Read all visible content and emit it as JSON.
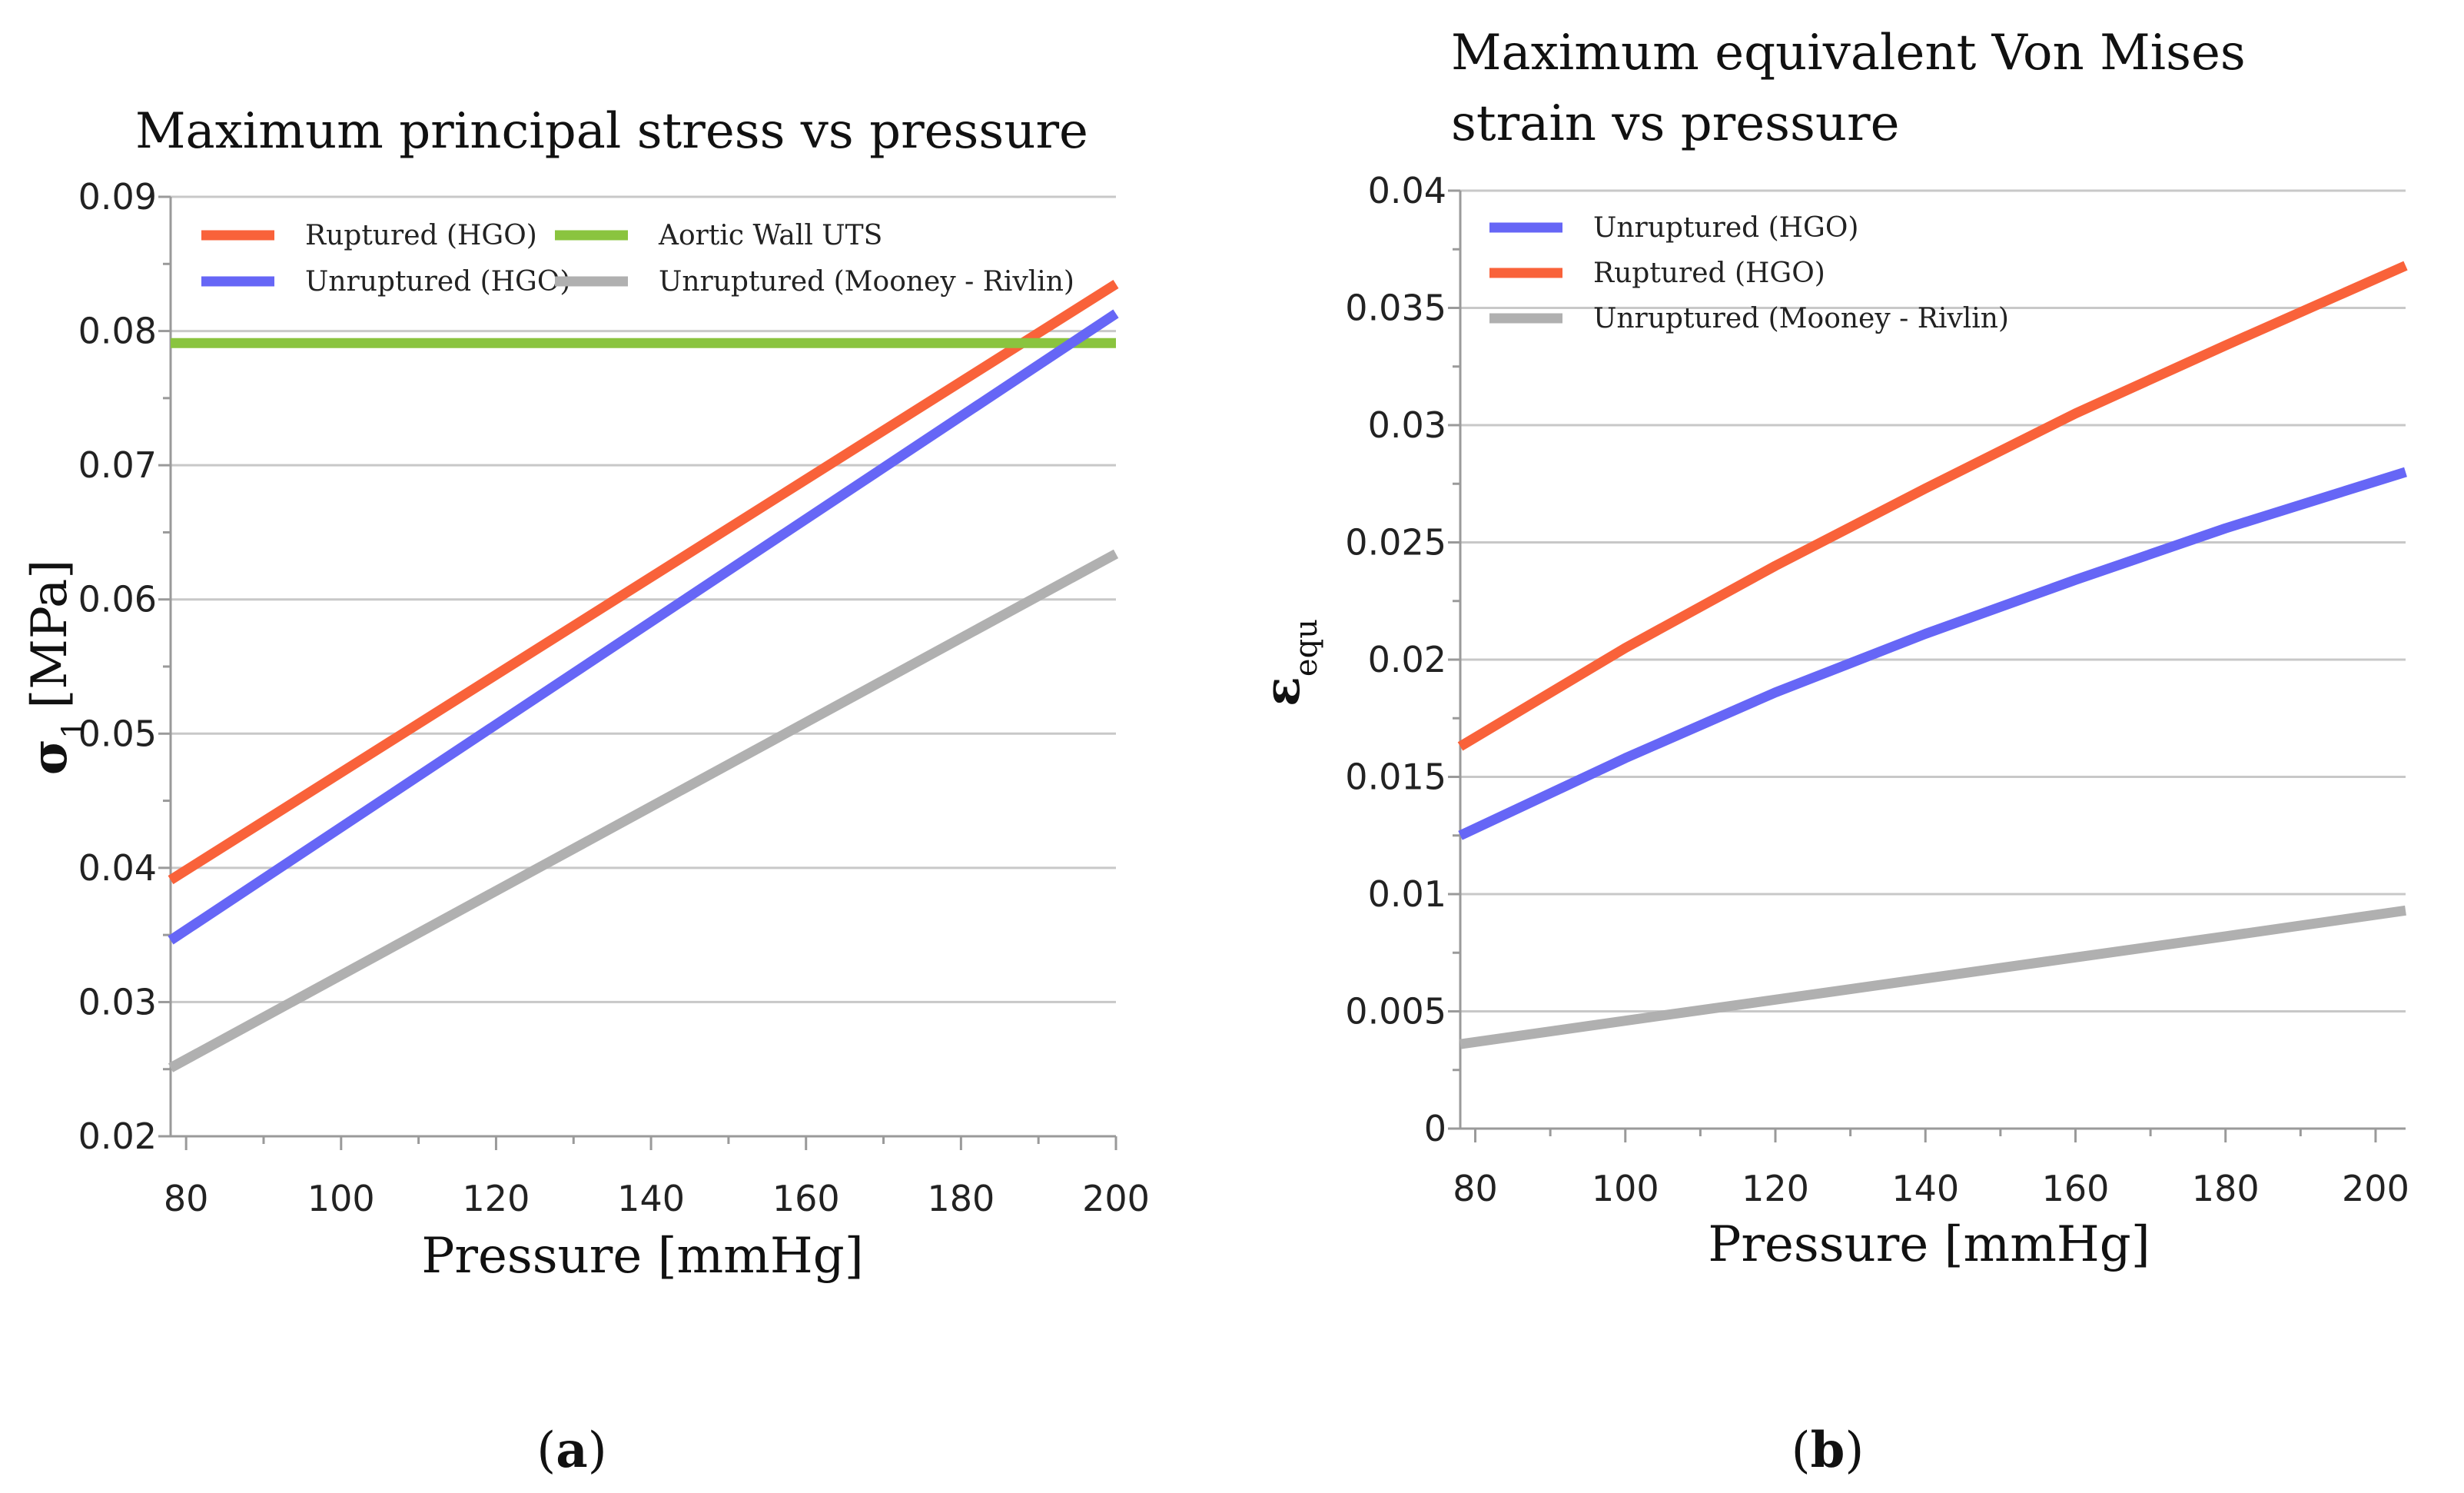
{
  "chart_data": [
    {
      "type": "line",
      "panel_label": "a",
      "title": "Maximum principal stress vs pressure",
      "title_lines": [
        "Maximum principal stress vs pressure"
      ],
      "xlabel": "Pressure [mmHg]",
      "ylabel_symbol": "σ",
      "ylabel_subscript": "1",
      "ylabel_unit": "[MPa]",
      "xlim": [
        78,
        200
      ],
      "ylim": [
        0.02,
        0.09
      ],
      "xticks": [
        80,
        100,
        120,
        140,
        160,
        180,
        200
      ],
      "xtick_labels": [
        "80",
        "100",
        "120",
        "140",
        "160",
        "180",
        "200"
      ],
      "yticks": [
        0.02,
        0.03,
        0.04,
        0.05,
        0.06,
        0.07,
        0.08,
        0.09
      ],
      "ytick_labels": [
        "0.02",
        "0.03",
        "0.04",
        "0.05",
        "0.06",
        "0.07",
        "0.08",
        "0.09"
      ],
      "grid": true,
      "legend_placement": "top-left",
      "legend_columns": 2,
      "series": [
        {
          "name": "Ruptured (HGO)",
          "color": "#f9623a",
          "x": [
            78,
            200
          ],
          "y": [
            0.0391,
            0.0835
          ]
        },
        {
          "name": "Aortic Wall UTS",
          "color": "#8ac43f",
          "x": [
            78,
            200
          ],
          "y": [
            0.0791,
            0.0791
          ]
        },
        {
          "name": "Unruptured (HGO)",
          "color": "#6666f6",
          "x": [
            78,
            200
          ],
          "y": [
            0.0346,
            0.0813
          ]
        },
        {
          "name": "Unruptured (Mooney - Rivlin)",
          "color": "#b0b0b0",
          "x": [
            78,
            200
          ],
          "y": [
            0.0251,
            0.0634
          ]
        }
      ]
    },
    {
      "type": "line",
      "panel_label": "b",
      "title": "Maximum equivalent Von Mises strain vs pressure",
      "title_lines": [
        "Maximum equivalent Von Mises",
        "strain vs pressure"
      ],
      "xlabel": "Pressure [mmHg]",
      "ylabel_symbol": "ε",
      "ylabel_subscript": "equ",
      "ylabel_unit": "",
      "xlim": [
        78,
        204
      ],
      "ylim": [
        0,
        0.04
      ],
      "xticks": [
        80,
        100,
        120,
        140,
        160,
        180,
        200
      ],
      "xtick_labels": [
        "80",
        "100",
        "120",
        "140",
        "160",
        "180",
        "200"
      ],
      "yticks": [
        0,
        0.005,
        0.01,
        0.015,
        0.02,
        0.025,
        0.03,
        0.035,
        0.04
      ],
      "ytick_labels": [
        "0",
        "0.005",
        "0.01",
        "0.015",
        "0.02",
        "0.025",
        "0.03",
        "0.035",
        "0.04"
      ],
      "grid": true,
      "legend_placement": "top-left",
      "legend_columns": 1,
      "series": [
        {
          "name": "Unruptured (HGO)",
          "color": "#6666f6",
          "x": [
            78,
            100,
            120,
            140,
            160,
            180,
            204
          ],
          "y": [
            0.0125,
            0.0158,
            0.0186,
            0.0211,
            0.0234,
            0.0256,
            0.028
          ]
        },
        {
          "name": "Ruptured (HGO)",
          "color": "#f9623a",
          "x": [
            78,
            100,
            120,
            140,
            160,
            180,
            204
          ],
          "y": [
            0.0163,
            0.0205,
            0.024,
            0.0273,
            0.0305,
            0.0334,
            0.0368
          ]
        },
        {
          "name": "Unruptured (Mooney - Rivlin)",
          "color": "#b0b0b0",
          "x": [
            78,
            100,
            120,
            140,
            160,
            180,
            204
          ],
          "y": [
            0.0036,
            0.0046,
            0.0055,
            0.0064,
            0.0073,
            0.0082,
            0.0093
          ]
        }
      ]
    }
  ]
}
